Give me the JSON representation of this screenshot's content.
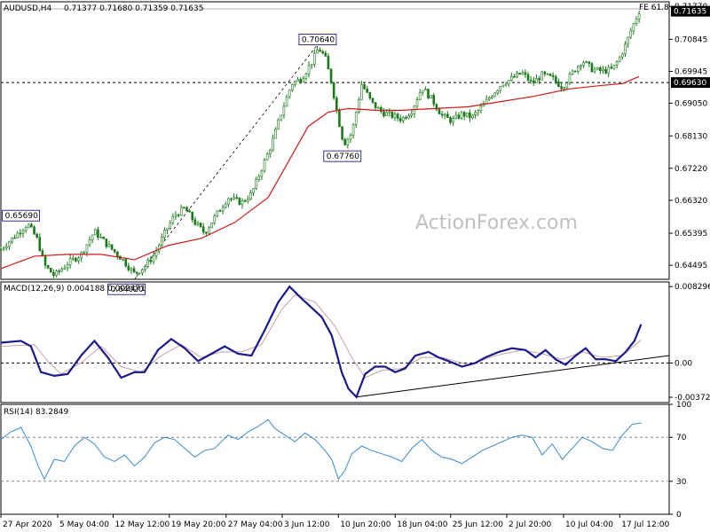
{
  "chart_data": [
    {
      "type": "candlestick",
      "symbol_label": "AUDUSD,H4",
      "ohlc_label": "0.71377 0.71680 0.71359 0.71635",
      "corner_label": "FE 61.8",
      "watermark": "ActionForex.com",
      "ylim": [
        0.641,
        0.719
      ],
      "yticks": [
        "0.71770",
        "0.70845",
        "0.69945",
        "0.69050",
        "0.68130",
        "0.67220",
        "0.66320",
        "0.65395",
        "0.64495"
      ],
      "price_tags": [
        {
          "text": "0.71635",
          "value": 0.71635,
          "style": "dark"
        },
        {
          "text": "0.69630",
          "value": 0.6963,
          "style": "dark"
        }
      ],
      "horizontal_lines": [
        0.6963
      ],
      "fe_line": 0.717,
      "pivot_labels": [
        {
          "text": "0.70640",
          "x": 0.474,
          "y": 0.7064,
          "pos": "above"
        },
        {
          "text": "0.67760",
          "x": 0.511,
          "y": 0.6776,
          "pos": "below"
        },
        {
          "text": "0.64020",
          "x": 0.188,
          "y": 0.6402,
          "pos": "below"
        },
        {
          "text": "0.65690",
          "x": 0.03,
          "y": 0.6569,
          "pos": "above"
        }
      ],
      "trend_lines": [
        {
          "x1": 0.2,
          "y1": 0.641,
          "x2": 0.474,
          "y2": 0.707,
          "dashed": true
        }
      ],
      "price": [
        [
          0.0,
          0.6495
        ],
        [
          0.02,
          0.653
        ],
        [
          0.04,
          0.6566
        ],
        [
          0.055,
          0.652
        ],
        [
          0.065,
          0.645
        ],
        [
          0.08,
          0.642
        ],
        [
          0.1,
          0.6455
        ],
        [
          0.12,
          0.648
        ],
        [
          0.14,
          0.6545
        ],
        [
          0.16,
          0.6505
        ],
        [
          0.18,
          0.647
        ],
        [
          0.2,
          0.6425
        ],
        [
          0.215,
          0.6445
        ],
        [
          0.23,
          0.648
        ],
        [
          0.245,
          0.654
        ],
        [
          0.26,
          0.659
        ],
        [
          0.275,
          0.661
        ],
        [
          0.29,
          0.657
        ],
        [
          0.305,
          0.654
        ],
        [
          0.32,
          0.6585
        ],
        [
          0.34,
          0.664
        ],
        [
          0.36,
          0.6625
        ],
        [
          0.375,
          0.665
        ],
        [
          0.39,
          0.672
        ],
        [
          0.405,
          0.679
        ],
        [
          0.42,
          0.688
        ],
        [
          0.435,
          0.696
        ],
        [
          0.45,
          0.6975
        ],
        [
          0.465,
          0.702
        ],
        [
          0.475,
          0.706
        ],
        [
          0.485,
          0.7035
        ],
        [
          0.495,
          0.696
        ],
        [
          0.505,
          0.686
        ],
        [
          0.513,
          0.679
        ],
        [
          0.525,
          0.682
        ],
        [
          0.54,
          0.696
        ],
        [
          0.555,
          0.6905
        ],
        [
          0.57,
          0.688
        ],
        [
          0.585,
          0.687
        ],
        [
          0.6,
          0.686
        ],
        [
          0.615,
          0.6885
        ],
        [
          0.63,
          0.695
        ],
        [
          0.645,
          0.6915
        ],
        [
          0.66,
          0.687
        ],
        [
          0.675,
          0.6855
        ],
        [
          0.69,
          0.6875
        ],
        [
          0.705,
          0.6865
        ],
        [
          0.72,
          0.6895
        ],
        [
          0.735,
          0.693
        ],
        [
          0.75,
          0.696
        ],
        [
          0.765,
          0.6975
        ],
        [
          0.78,
          0.699
        ],
        [
          0.795,
          0.696
        ],
        [
          0.81,
          0.6985
        ],
        [
          0.825,
          0.6975
        ],
        [
          0.84,
          0.695
        ],
        [
          0.855,
          0.699
        ],
        [
          0.87,
          0.7025
        ],
        [
          0.885,
          0.7
        ],
        [
          0.9,
          0.6995
        ],
        [
          0.915,
          0.7
        ],
        [
          0.925,
          0.703
        ],
        [
          0.935,
          0.707
        ],
        [
          0.945,
          0.712
        ],
        [
          0.955,
          0.7163
        ]
      ],
      "ma": [
        [
          0.0,
          0.644
        ],
        [
          0.05,
          0.6475
        ],
        [
          0.1,
          0.648
        ],
        [
          0.15,
          0.648
        ],
        [
          0.2,
          0.6465
        ],
        [
          0.25,
          0.6505
        ],
        [
          0.3,
          0.6525
        ],
        [
          0.35,
          0.657
        ],
        [
          0.4,
          0.664
        ],
        [
          0.43,
          0.674
        ],
        [
          0.46,
          0.684
        ],
        [
          0.49,
          0.688
        ],
        [
          0.52,
          0.689
        ],
        [
          0.56,
          0.6885
        ],
        [
          0.6,
          0.6885
        ],
        [
          0.65,
          0.689
        ],
        [
          0.7,
          0.6895
        ],
        [
          0.75,
          0.691
        ],
        [
          0.8,
          0.6925
        ],
        [
          0.85,
          0.6945
        ],
        [
          0.9,
          0.6955
        ],
        [
          0.93,
          0.696
        ],
        [
          0.955,
          0.698
        ]
      ]
    },
    {
      "type": "line",
      "title": "MACD(12,26,9) 0.004188 0.002471",
      "ylim": [
        -0.0043,
        0.0088
      ],
      "yticks": [
        "0.008296",
        "0.00",
        "-0.003725"
      ],
      "zero_tag": "0.00",
      "series": [
        {
          "values": [
            [
              0.0,
              0.0022
            ],
            [
              0.03,
              0.0024
            ],
            [
              0.045,
              0.0018
            ],
            [
              0.06,
              -0.001
            ],
            [
              0.08,
              -0.0014
            ],
            [
              0.1,
              -0.0012
            ],
            [
              0.12,
              0.0008
            ],
            [
              0.14,
              0.0024
            ],
            [
              0.16,
              0.0006
            ],
            [
              0.18,
              -0.0016
            ],
            [
              0.2,
              -0.001
            ],
            [
              0.215,
              -0.001
            ],
            [
              0.235,
              0.0014
            ],
            [
              0.255,
              0.0026
            ],
            [
              0.275,
              0.0016
            ],
            [
              0.295,
              0.0002
            ],
            [
              0.315,
              0.001
            ],
            [
              0.335,
              0.0018
            ],
            [
              0.355,
              0.001
            ],
            [
              0.375,
              0.0008
            ],
            [
              0.395,
              0.0036
            ],
            [
              0.415,
              0.0066
            ],
            [
              0.432,
              0.0083
            ],
            [
              0.45,
              0.007
            ],
            [
              0.465,
              0.006
            ],
            [
              0.48,
              0.005
            ],
            [
              0.495,
              0.003
            ],
            [
              0.51,
              -0.001
            ],
            [
              0.52,
              -0.0028
            ],
            [
              0.532,
              -0.0037
            ],
            [
              0.545,
              -0.0012
            ],
            [
              0.56,
              -0.0004
            ],
            [
              0.575,
              -0.0004
            ],
            [
              0.59,
              -0.001
            ],
            [
              0.605,
              -0.0006
            ],
            [
              0.62,
              0.0008
            ],
            [
              0.64,
              0.0012
            ],
            [
              0.655,
              0.0006
            ],
            [
              0.67,
              0.0002
            ],
            [
              0.69,
              -0.0004
            ],
            [
              0.71,
              0.0
            ],
            [
              0.725,
              0.0006
            ],
            [
              0.745,
              0.0012
            ],
            [
              0.765,
              0.0016
            ],
            [
              0.785,
              0.0014
            ],
            [
              0.8,
              0.0006
            ],
            [
              0.815,
              0.0014
            ],
            [
              0.83,
              0.0004
            ],
            [
              0.845,
              -0.0002
            ],
            [
              0.86,
              0.0008
            ],
            [
              0.875,
              0.0016
            ],
            [
              0.89,
              0.0004
            ],
            [
              0.905,
              0.0004
            ],
            [
              0.92,
              0.0002
            ],
            [
              0.935,
              0.0012
            ],
            [
              0.948,
              0.0024
            ],
            [
              0.958,
              0.0042
            ]
          ]
        },
        {
          "values": [
            [
              0.0,
              0.0018
            ],
            [
              0.05,
              0.002
            ],
            [
              0.07,
              0.0002
            ],
            [
              0.09,
              -0.0012
            ],
            [
              0.12,
              0.0
            ],
            [
              0.15,
              0.0018
            ],
            [
              0.18,
              -0.0004
            ],
            [
              0.21,
              -0.001
            ],
            [
              0.24,
              0.0008
            ],
            [
              0.27,
              0.002
            ],
            [
              0.3,
              0.0006
            ],
            [
              0.33,
              0.0012
            ],
            [
              0.36,
              0.0012
            ],
            [
              0.39,
              0.002
            ],
            [
              0.42,
              0.0058
            ],
            [
              0.44,
              0.0074
            ],
            [
              0.47,
              0.0066
            ],
            [
              0.5,
              0.004
            ],
            [
              0.525,
              0.0006
            ],
            [
              0.545,
              -0.0016
            ],
            [
              0.57,
              -0.0008
            ],
            [
              0.6,
              -0.0006
            ],
            [
              0.63,
              0.0006
            ],
            [
              0.66,
              0.0006
            ],
            [
              0.7,
              -0.0002
            ],
            [
              0.74,
              0.0008
            ],
            [
              0.78,
              0.0014
            ],
            [
              0.81,
              0.001
            ],
            [
              0.84,
              0.0004
            ],
            [
              0.87,
              0.0012
            ],
            [
              0.9,
              0.0006
            ],
            [
              0.93,
              0.0008
            ],
            [
              0.958,
              0.0025
            ]
          ]
        }
      ],
      "trend_line": {
        "x1": 0.532,
        "y1": -0.0037,
        "x2": 1.0,
        "y2": 0.0008
      }
    },
    {
      "type": "line",
      "title": "RSI(14) 83.2849",
      "ylim": [
        0,
        100
      ],
      "yticks": [
        "100",
        "70",
        "30",
        "0"
      ],
      "levels": [
        70,
        30
      ],
      "values": [
        [
          0.0,
          68
        ],
        [
          0.015,
          75
        ],
        [
          0.03,
          79
        ],
        [
          0.045,
          62
        ],
        [
          0.055,
          45
        ],
        [
          0.065,
          32
        ],
        [
          0.08,
          50
        ],
        [
          0.095,
          48
        ],
        [
          0.11,
          62
        ],
        [
          0.125,
          70
        ],
        [
          0.14,
          64
        ],
        [
          0.155,
          52
        ],
        [
          0.17,
          48
        ],
        [
          0.185,
          54
        ],
        [
          0.2,
          44
        ],
        [
          0.215,
          52
        ],
        [
          0.23,
          65
        ],
        [
          0.245,
          70
        ],
        [
          0.26,
          68
        ],
        [
          0.275,
          60
        ],
        [
          0.29,
          52
        ],
        [
          0.305,
          58
        ],
        [
          0.32,
          60
        ],
        [
          0.34,
          72
        ],
        [
          0.355,
          68
        ],
        [
          0.37,
          75
        ],
        [
          0.385,
          80
        ],
        [
          0.4,
          86
        ],
        [
          0.41,
          78
        ],
        [
          0.425,
          72
        ],
        [
          0.44,
          66
        ],
        [
          0.455,
          74
        ],
        [
          0.47,
          68
        ],
        [
          0.485,
          58
        ],
        [
          0.495,
          50
        ],
        [
          0.505,
          32
        ],
        [
          0.515,
          40
        ],
        [
          0.525,
          55
        ],
        [
          0.54,
          62
        ],
        [
          0.555,
          58
        ],
        [
          0.57,
          55
        ],
        [
          0.585,
          52
        ],
        [
          0.6,
          48
        ],
        [
          0.615,
          60
        ],
        [
          0.63,
          68
        ],
        [
          0.645,
          58
        ],
        [
          0.66,
          52
        ],
        [
          0.675,
          50
        ],
        [
          0.69,
          46
        ],
        [
          0.705,
          52
        ],
        [
          0.72,
          58
        ],
        [
          0.735,
          62
        ],
        [
          0.75,
          66
        ],
        [
          0.765,
          70
        ],
        [
          0.78,
          72
        ],
        [
          0.795,
          70
        ],
        [
          0.81,
          54
        ],
        [
          0.825,
          64
        ],
        [
          0.84,
          50
        ],
        [
          0.855,
          60
        ],
        [
          0.87,
          70
        ],
        [
          0.885,
          66
        ],
        [
          0.9,
          60
        ],
        [
          0.915,
          58
        ],
        [
          0.93,
          72
        ],
        [
          0.945,
          82
        ],
        [
          0.958,
          83
        ]
      ]
    }
  ],
  "x_ticks": [
    "27 Apr 2020",
    "5 May 04:00",
    "12 May 12:00",
    "19 May 20:00",
    "27 May 04:00",
    "3 Jun 12:00",
    "10 Jun 20:00",
    "18 Jun 04:00",
    "25 Jun 12:00",
    "2 Jul 20:00",
    "10 Jul 04:00",
    "17 Jul 12:00"
  ],
  "x_tick_positions": [
    0.0,
    0.085,
    0.168,
    0.252,
    0.337,
    0.421,
    0.505,
    0.59,
    0.673,
    0.757,
    0.842,
    0.926
  ],
  "colors": {
    "candle": "#1a7a1a",
    "ma": "#d11919",
    "macd": "#1a1a8c",
    "signal": "#c8a0a0",
    "rsi": "#3a8ad0",
    "grid_dash": "#000000",
    "tag_bg": "#000000",
    "tag_text": "#ffffff"
  }
}
